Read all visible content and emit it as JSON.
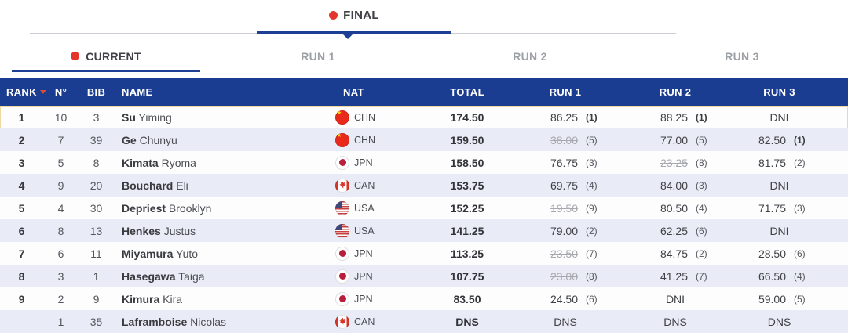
{
  "phase_tabs": {
    "final_label": "FINAL"
  },
  "run_tabs": [
    {
      "label": "CURRENT",
      "active": true
    },
    {
      "label": "RUN 1",
      "active": false
    },
    {
      "label": "RUN 2",
      "active": false
    },
    {
      "label": "RUN 3",
      "active": false
    }
  ],
  "table": {
    "headers": {
      "rank": "RANK",
      "no": "N°",
      "bib": "BIB",
      "name": "NAME",
      "nat": "NAT",
      "total": "TOTAL",
      "run1": "RUN 1",
      "run2": "RUN 2",
      "run3": "RUN 3"
    },
    "rows": [
      {
        "rank": "1",
        "no": "10",
        "bib": "3",
        "last": "Su",
        "first": "Yiming",
        "nat": "CHN",
        "total": "174.50",
        "total_bold": true,
        "highlight": true,
        "runs": [
          {
            "val": "86.25",
            "pos": "(1)",
            "best": true
          },
          {
            "val": "88.25",
            "pos": "(1)",
            "best": true
          },
          {
            "text": "DNI"
          }
        ]
      },
      {
        "rank": "2",
        "no": "7",
        "bib": "39",
        "last": "Ge",
        "first": "Chunyu",
        "nat": "CHN",
        "total": "159.50",
        "total_bold": true,
        "runs": [
          {
            "val": "38.00",
            "pos": "(5)",
            "strike": true
          },
          {
            "val": "77.00",
            "pos": "(5)"
          },
          {
            "val": "82.50",
            "pos": "(1)",
            "best": true
          }
        ]
      },
      {
        "rank": "3",
        "no": "5",
        "bib": "8",
        "last": "Kimata",
        "first": "Ryoma",
        "nat": "JPN",
        "total": "158.50",
        "total_bold": true,
        "runs": [
          {
            "val": "76.75",
            "pos": "(3)"
          },
          {
            "val": "23.25",
            "pos": "(8)",
            "strike": true
          },
          {
            "val": "81.75",
            "pos": "(2)"
          }
        ]
      },
      {
        "rank": "4",
        "no": "9",
        "bib": "20",
        "last": "Bouchard",
        "first": "Eli",
        "nat": "CAN",
        "total": "153.75",
        "total_bold": true,
        "runs": [
          {
            "val": "69.75",
            "pos": "(4)"
          },
          {
            "val": "84.00",
            "pos": "(3)"
          },
          {
            "text": "DNI"
          }
        ]
      },
      {
        "rank": "5",
        "no": "4",
        "bib": "30",
        "last": "Depriest",
        "first": "Brooklyn",
        "nat": "USA",
        "total": "152.25",
        "total_bold": true,
        "runs": [
          {
            "val": "19.50",
            "pos": "(9)",
            "strike": true
          },
          {
            "val": "80.50",
            "pos": "(4)"
          },
          {
            "val": "71.75",
            "pos": "(3)"
          }
        ]
      },
      {
        "rank": "6",
        "no": "8",
        "bib": "13",
        "last": "Henkes",
        "first": "Justus",
        "nat": "USA",
        "total": "141.25",
        "total_bold": true,
        "runs": [
          {
            "val": "79.00",
            "pos": "(2)"
          },
          {
            "val": "62.25",
            "pos": "(6)"
          },
          {
            "text": "DNI"
          }
        ]
      },
      {
        "rank": "7",
        "no": "6",
        "bib": "11",
        "last": "Miyamura",
        "first": "Yuto",
        "nat": "JPN",
        "total": "113.25",
        "total_bold": true,
        "runs": [
          {
            "val": "23.50",
            "pos": "(7)",
            "strike": true
          },
          {
            "val": "84.75",
            "pos": "(2)"
          },
          {
            "val": "28.50",
            "pos": "(6)"
          }
        ]
      },
      {
        "rank": "8",
        "no": "3",
        "bib": "1",
        "last": "Hasegawa",
        "first": "Taiga",
        "nat": "JPN",
        "total": "107.75",
        "total_bold": true,
        "runs": [
          {
            "val": "23.00",
            "pos": "(8)",
            "strike": true
          },
          {
            "val": "41.25",
            "pos": "(7)"
          },
          {
            "val": "66.50",
            "pos": "(4)"
          }
        ]
      },
      {
        "rank": "9",
        "no": "2",
        "bib": "9",
        "last": "Kimura",
        "first": "Kira",
        "nat": "JPN",
        "total": "83.50",
        "total_bold": true,
        "runs": [
          {
            "val": "24.50",
            "pos": "(6)"
          },
          {
            "text": "DNI"
          },
          {
            "val": "59.00",
            "pos": "(5)"
          }
        ]
      },
      {
        "rank": "",
        "no": "1",
        "bib": "35",
        "last": "Laframboise",
        "first": "Nicolas",
        "nat": "CAN",
        "total": "DNS",
        "total_bold": true,
        "runs": [
          {
            "text": "DNS"
          },
          {
            "text": "DNS"
          },
          {
            "text": "DNS"
          }
        ]
      }
    ]
  },
  "colors": {
    "header_blue": "#1b3d91",
    "accent_blue": "#1d4094",
    "dot_red": "#e33529",
    "sort_triangle_red": "#dd4a2f",
    "highlight_yellow": "#efd9a0",
    "row_alt": "#e9ebf6"
  }
}
